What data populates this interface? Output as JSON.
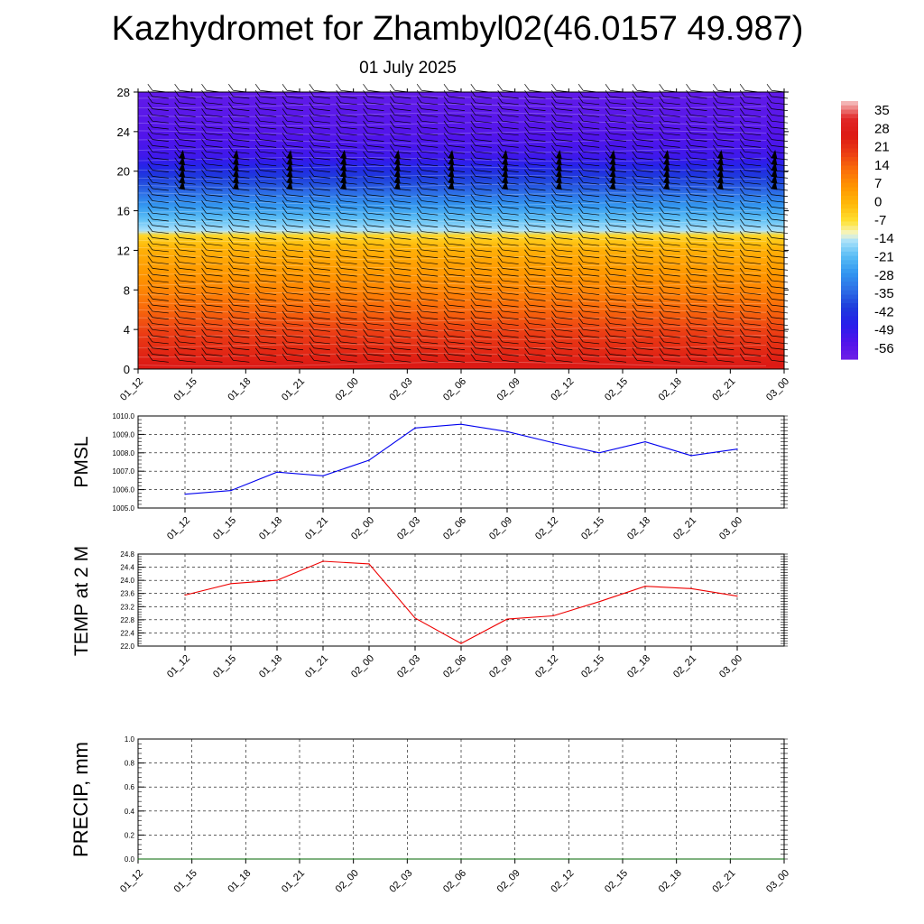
{
  "header": {
    "title": "Kazhydromet for Zhambyl02(46.0157 49.987)",
    "subtitle": "01 July 2025"
  },
  "chart_data": [
    {
      "type": "heatmap",
      "description_kind": "time-height cross-section with wind barbs",
      "categories": [
        "01_12",
        "01_15",
        "01_18",
        "01_21",
        "02_00",
        "02_03",
        "02_06",
        "02_09",
        "02_12",
        "02_15",
        "02_18",
        "02_21",
        "03_00"
      ],
      "y_ticks": [
        "0",
        "4",
        "8",
        "12",
        "16",
        "20",
        "24",
        "28"
      ],
      "ylim": [
        0,
        28
      ],
      "title": "",
      "xlabel": "",
      "ylabel": "",
      "colorbar": {
        "labels": [
          "35",
          "28",
          "21",
          "14",
          "7",
          "0",
          "-7",
          "-14",
          "-21",
          "-28",
          "-35",
          "-42",
          "-49",
          "-56"
        ],
        "range": [
          -63,
          42
        ]
      },
      "temperature_profile": [
        {
          "level": 0,
          "value": 29
        },
        {
          "level": 4,
          "value": 20
        },
        {
          "level": 8,
          "value": 10
        },
        {
          "level": 12,
          "value": 2
        },
        {
          "level": 13.5,
          "value": -5
        },
        {
          "level": 14,
          "value": -15
        },
        {
          "level": 16,
          "value": -25
        },
        {
          "level": 18,
          "value": -36
        },
        {
          "level": 20,
          "value": -45
        },
        {
          "level": 21.5,
          "value": -53
        },
        {
          "level": 24,
          "value": -57
        },
        {
          "level": 28,
          "value": -60
        }
      ],
      "grid": false
    },
    {
      "type": "line",
      "categories": [
        "01_12",
        "01_15",
        "01_18",
        "01_21",
        "02_00",
        "02_03",
        "02_06",
        "02_09",
        "02_12",
        "02_15",
        "02_18",
        "02_21",
        "03_00"
      ],
      "series": [
        {
          "values": [
            1005.75,
            1005.95,
            1006.95,
            1006.75,
            1007.6,
            1009.35,
            1009.55,
            1009.15,
            1008.55,
            1008.0,
            1008.6,
            1007.85,
            1008.2
          ]
        }
      ],
      "title": "",
      "xlabel": "",
      "ylabel": "PMSL",
      "y_ticks": [
        "1005.0",
        "1006.0",
        "1007.0",
        "1008.0",
        "1009.0",
        "1010.0"
      ],
      "ylim": [
        1005,
        1010
      ],
      "color": "#0000ee",
      "grid": true
    },
    {
      "type": "line",
      "categories": [
        "01_12",
        "01_15",
        "01_18",
        "01_21",
        "02_00",
        "02_03",
        "02_06",
        "02_09",
        "02_12",
        "02_15",
        "02_18",
        "02_21",
        "03_00"
      ],
      "series": [
        {
          "values": [
            23.55,
            23.9,
            24.0,
            24.58,
            24.5,
            22.85,
            22.08,
            22.82,
            22.92,
            23.35,
            23.82,
            23.75,
            23.52
          ]
        }
      ],
      "title": "",
      "xlabel": "",
      "ylabel": "TEMP at 2 M",
      "y_ticks": [
        "22.0",
        "22.4",
        "22.8",
        "23.2",
        "23.6",
        "24.0",
        "24.4",
        "24.8"
      ],
      "ylim": [
        22.0,
        24.8
      ],
      "color": "#ee0000",
      "grid": true
    },
    {
      "type": "line",
      "categories": [
        "01_12",
        "01_15",
        "01_18",
        "01_21",
        "02_00",
        "02_03",
        "02_06",
        "02_09",
        "02_12",
        "02_15",
        "02_18",
        "02_21",
        "03_00"
      ],
      "series": [
        {
          "values": [
            0,
            0,
            0,
            0,
            0,
            0,
            0,
            0,
            0,
            0,
            0,
            0,
            0
          ]
        }
      ],
      "title": "",
      "xlabel": "",
      "ylabel": "PRECIP, mm",
      "y_ticks": [
        "0.0",
        "0.2",
        "0.4",
        "0.6",
        "0.8",
        "1.0"
      ],
      "ylim": [
        0,
        1
      ],
      "color": "#006400",
      "grid": true
    }
  ]
}
